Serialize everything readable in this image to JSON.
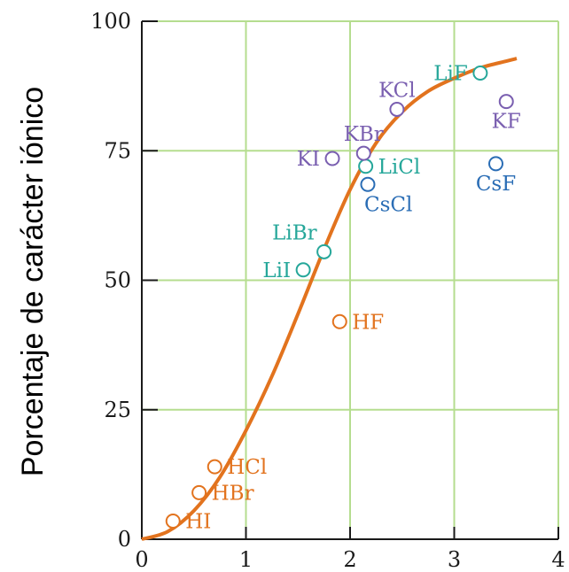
{
  "chart_data": {
    "type": "scatter",
    "title": "",
    "xlabel": "",
    "ylabel": "Porcentaje de carácter iónico",
    "xlim": [
      0,
      4
    ],
    "ylim": [
      0,
      100
    ],
    "x_ticks": [
      "0",
      "1",
      "2",
      "3",
      "4"
    ],
    "y_ticks": [
      "0",
      "25",
      "50",
      "75",
      "100"
    ],
    "grid": true,
    "colors": {
      "grid": "#b5dd8f",
      "curve": "#e2731e",
      "hydrogen_halides": "#e2731e",
      "lithium_halides": "#26a79a",
      "potassium_halides": "#7a5fb0",
      "cesium_halides": "#2a6db5",
      "axis": "#1a1a1a"
    },
    "points": [
      {
        "label": "HI",
        "x": 0.3,
        "y": 3.5,
        "group": "hydrogen_halides",
        "anchor": "right"
      },
      {
        "label": "HBr",
        "x": 0.55,
        "y": 9.0,
        "group": "hydrogen_halides",
        "anchor": "right"
      },
      {
        "label": "HCl",
        "x": 0.7,
        "y": 14.0,
        "group": "hydrogen_halides",
        "anchor": "right"
      },
      {
        "label": "HF",
        "x": 1.9,
        "y": 42.0,
        "group": "hydrogen_halides",
        "anchor": "right"
      },
      {
        "label": "LiI",
        "x": 1.55,
        "y": 52.0,
        "group": "lithium_halides",
        "anchor": "left"
      },
      {
        "label": "LiBr",
        "x": 1.75,
        "y": 55.5,
        "group": "lithium_halides",
        "anchor": "above-left"
      },
      {
        "label": "LiCl",
        "x": 2.15,
        "y": 72.0,
        "group": "lithium_halides",
        "anchor": "right"
      },
      {
        "label": "LiF",
        "x": 3.25,
        "y": 90.0,
        "group": "lithium_halides",
        "anchor": "left"
      },
      {
        "label": "KI",
        "x": 1.83,
        "y": 73.5,
        "group": "potassium_halides",
        "anchor": "left"
      },
      {
        "label": "KBr",
        "x": 2.13,
        "y": 74.5,
        "group": "potassium_halides",
        "anchor": "above"
      },
      {
        "label": "KCl",
        "x": 2.45,
        "y": 83.0,
        "group": "potassium_halides",
        "anchor": "above"
      },
      {
        "label": "KF",
        "x": 3.5,
        "y": 84.5,
        "group": "potassium_halides",
        "anchor": "below"
      },
      {
        "label": "CsCl",
        "x": 2.17,
        "y": 68.5,
        "group": "cesium_halides",
        "anchor": "below-right"
      },
      {
        "label": "CsF",
        "x": 3.4,
        "y": 72.5,
        "group": "cesium_halides",
        "anchor": "below"
      }
    ],
    "curve": {
      "name": "",
      "x": [
        0,
        0.25,
        0.5,
        0.75,
        1.0,
        1.25,
        1.5,
        1.75,
        2.0,
        2.25,
        2.5,
        2.75,
        3.0,
        3.25,
        3.5,
        3.6
      ],
      "y": [
        0,
        1.5,
        5.5,
        12.0,
        21.0,
        31.5,
        43.5,
        56.0,
        67.5,
        76.5,
        82.5,
        86.5,
        89.0,
        91.0,
        92.3,
        92.8
      ]
    }
  }
}
